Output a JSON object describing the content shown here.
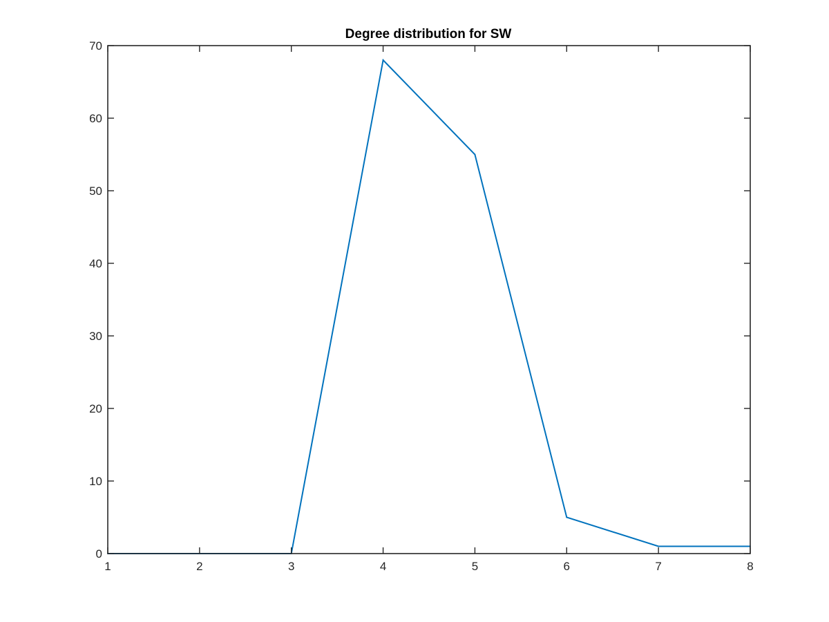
{
  "chart_data": {
    "type": "line",
    "title": "Degree distribution for SW",
    "xlabel": "",
    "ylabel": "",
    "xlim": [
      1,
      8
    ],
    "ylim": [
      0,
      70
    ],
    "xticks": [
      1,
      2,
      3,
      4,
      5,
      6,
      7,
      8
    ],
    "yticks": [
      0,
      10,
      20,
      30,
      40,
      50,
      60,
      70
    ],
    "grid": false,
    "box": true,
    "series": [
      {
        "x": [
          1,
          2,
          3,
          4,
          5,
          6,
          7,
          8
        ],
        "y": [
          0,
          0,
          0,
          68,
          55,
          5,
          1,
          1
        ],
        "color": "#0072BD"
      }
    ]
  }
}
